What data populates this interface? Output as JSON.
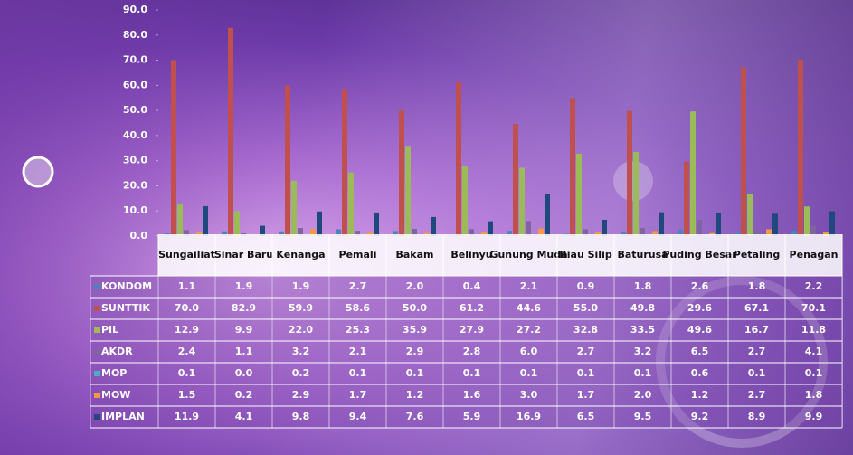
{
  "chart_data": {
    "type": "bar",
    "categories": [
      "Sungailiat",
      "Sinar Baru",
      "Kenanga",
      "Pemali",
      "Bakam",
      "Belinyu",
      "Gunung Muda",
      "Riau Silip",
      "Baturusa",
      "Puding Besar",
      "Petaling",
      "Penagan"
    ],
    "ylim": [
      0,
      90
    ],
    "yticks": [
      {
        "value": 0,
        "label": "0.0"
      },
      {
        "value": 10,
        "label": "10.0"
      },
      {
        "value": 20,
        "label": "20.0"
      },
      {
        "value": 30,
        "label": "30.0"
      },
      {
        "value": 40,
        "label": "40.0"
      },
      {
        "value": 50,
        "label": "50.0"
      },
      {
        "value": 60,
        "label": "60.0"
      },
      {
        "value": 70,
        "label": "70.0"
      },
      {
        "value": 80,
        "label": "80.0"
      },
      {
        "value": 90,
        "label": "90.0"
      }
    ],
    "series": [
      {
        "name": "KONDOM",
        "color": "#4f81bd",
        "values": [
          1.1,
          1.9,
          1.9,
          2.7,
          2.0,
          0.4,
          2.1,
          0.9,
          1.8,
          2.6,
          1.8,
          2.2
        ],
        "value_labels": [
          "1.1",
          "1.9",
          "1.9",
          "2.7",
          "2.0",
          "0.4",
          "2.1",
          "0.9",
          "1.8",
          "2.6",
          "1.8",
          "2.2"
        ]
      },
      {
        "name": "SUNTTIK",
        "color": "#c0504d",
        "values": [
          70.0,
          82.9,
          59.9,
          58.6,
          50.0,
          61.2,
          44.6,
          55.0,
          49.8,
          29.6,
          67.1,
          70.1
        ],
        "value_labels": [
          "70.0",
          "82.9",
          "59.9",
          "58.6",
          "50.0",
          "61.2",
          "44.6",
          "55.0",
          "49.8",
          "29.6",
          "67.1",
          "70.1"
        ]
      },
      {
        "name": "PIL",
        "color": "#9bbb59",
        "values": [
          12.9,
          9.9,
          22.0,
          25.3,
          35.9,
          27.9,
          27.2,
          32.8,
          33.5,
          49.6,
          16.7,
          11.8
        ],
        "value_labels": [
          "12.9",
          "9.9",
          "22.0",
          "25.3",
          "35.9",
          "27.9",
          "27.2",
          "32.8",
          "33.5",
          "49.6",
          "16.7",
          "11.8"
        ]
      },
      {
        "name": "AKDR",
        "color": "#8064a2",
        "values": [
          2.4,
          1.1,
          3.2,
          2.1,
          2.9,
          2.8,
          6.0,
          2.7,
          3.2,
          6.5,
          2.7,
          4.1
        ],
        "value_labels": [
          "2.4",
          "1.1",
          "3.2",
          "2.1",
          "2.9",
          "2.8",
          "6.0",
          "2.7",
          "3.2",
          "6.5",
          "2.7",
          "4.1"
        ]
      },
      {
        "name": "MOP",
        "color": "#4bacc6",
        "values": [
          0.1,
          0.0,
          0.2,
          0.1,
          0.1,
          0.1,
          0.1,
          0.1,
          0.1,
          0.6,
          0.1,
          0.1
        ],
        "value_labels": [
          "0.1",
          "0.0",
          "0.2",
          "0.1",
          "0.1",
          "0.1",
          "0.1",
          "0.1",
          "0.1",
          "0.6",
          "0.1",
          "0.1"
        ]
      },
      {
        "name": "MOW",
        "color": "#f79646",
        "values": [
          1.5,
          0.2,
          2.9,
          1.7,
          1.2,
          1.6,
          3.0,
          1.7,
          2.0,
          1.2,
          2.7,
          1.8
        ],
        "value_labels": [
          "1.5",
          "0.2",
          "2.9",
          "1.7",
          "1.2",
          "1.6",
          "3.0",
          "1.7",
          "2.0",
          "1.2",
          "2.7",
          "1.8"
        ]
      },
      {
        "name": "IMPLAN",
        "color": "#1f497d",
        "values": [
          11.9,
          4.1,
          9.8,
          9.4,
          7.6,
          5.9,
          16.9,
          6.5,
          9.5,
          9.2,
          8.9,
          9.9
        ],
        "value_labels": [
          "11.9",
          "4.1",
          "9.8",
          "9.4",
          "7.6",
          "5.9",
          "16.9",
          "6.5",
          "9.5",
          "9.2",
          "8.9",
          "9.9"
        ]
      }
    ]
  }
}
